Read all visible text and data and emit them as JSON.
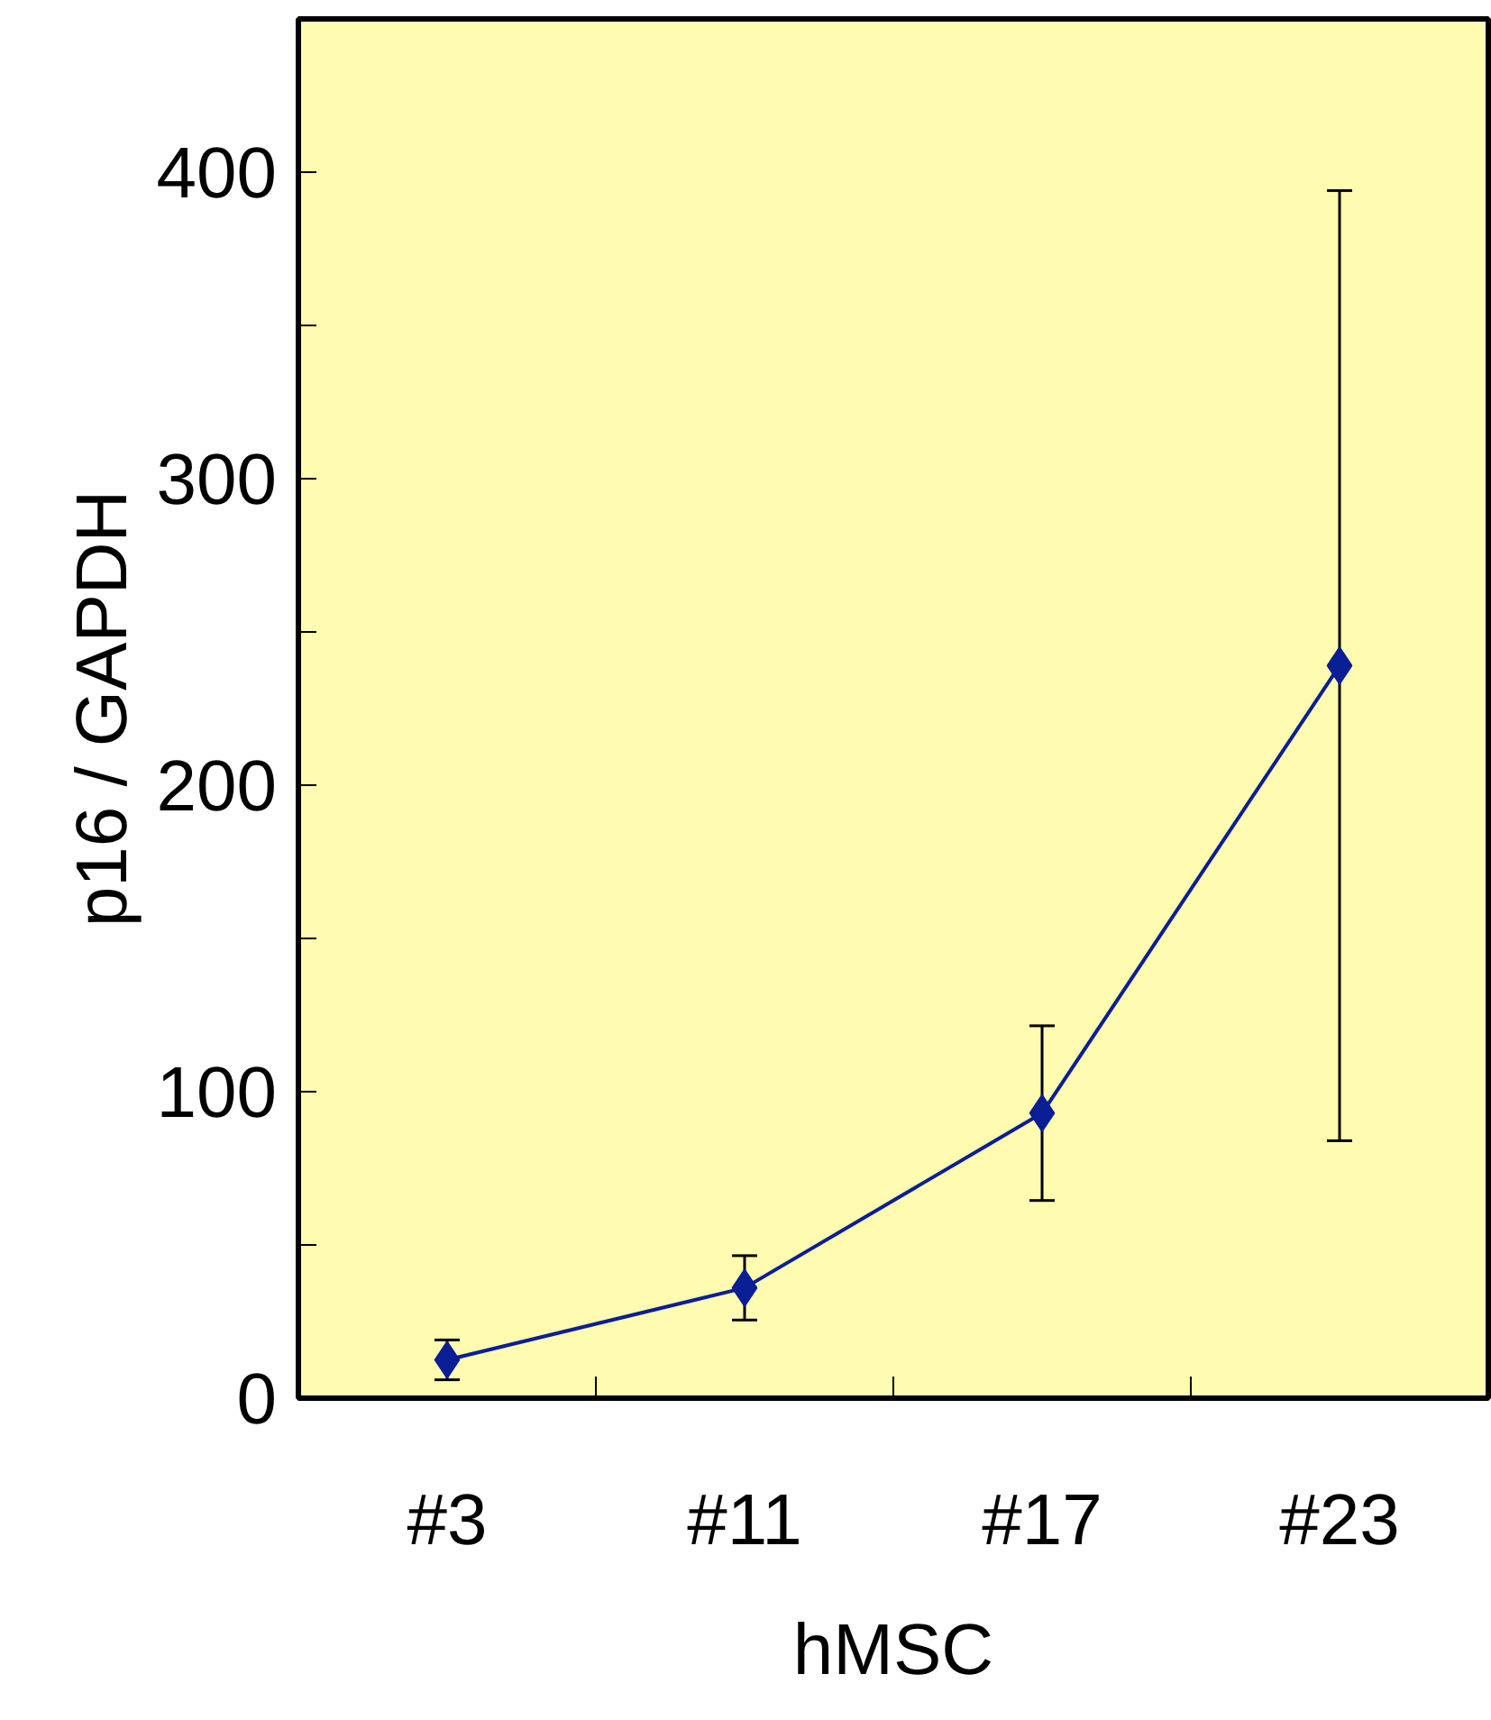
{
  "chart_data": {
    "type": "line",
    "xlabel": "hMSC",
    "ylabel": "p16 / GAPDH",
    "categories": [
      "#3",
      "#11",
      "#17",
      "#23"
    ],
    "series": [
      {
        "color": "#0a1e96",
        "values": [
          12.5,
          36,
          93,
          239
        ],
        "errors": [
          6.5,
          10.5,
          28.5,
          155
        ]
      }
    ],
    "ylim": [
      0,
      450
    ],
    "yticks": [
      0,
      {
        "value": 50,
        "label": null
      },
      100,
      {
        "value": 150,
        "label": null
      },
      200,
      {
        "value": 250,
        "label": null
      },
      300,
      {
        "value": 350,
        "label": null
      },
      400
    ],
    "marker": "diamond",
    "line_style": "solid",
    "grid": false
  }
}
